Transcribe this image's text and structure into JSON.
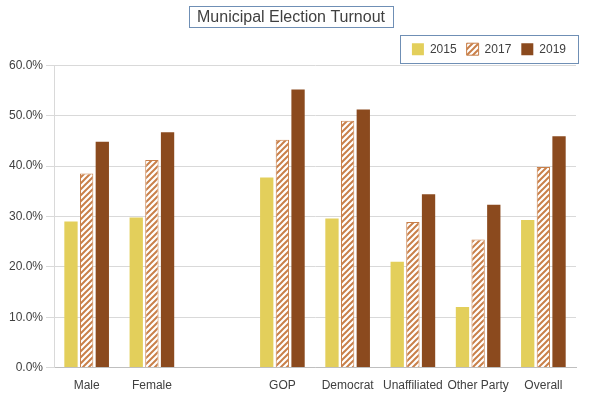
{
  "chart_data": {
    "type": "bar",
    "title": "Municipal Election Turnout",
    "categories": [
      "Male",
      "Female",
      null,
      "GOP",
      "Democrat",
      "Unaffiliated",
      "Other Party",
      "Overall"
    ],
    "series": [
      {
        "name": "2015",
        "color": "#e3cf5b",
        "values": [
          29.0,
          29.8,
          null,
          37.7,
          29.6,
          21.0,
          12.0,
          29.3
        ]
      },
      {
        "name": "2017",
        "color": "#c9804a",
        "line_style": "hatched",
        "values": [
          38.5,
          41.2,
          null,
          45.2,
          49.0,
          28.9,
          25.4,
          39.8
        ]
      },
      {
        "name": "2019",
        "color": "#8b4a1e",
        "values": [
          44.8,
          46.7,
          null,
          55.2,
          51.2,
          34.4,
          32.3,
          45.9
        ]
      }
    ],
    "ylim": [
      0,
      60
    ],
    "yticks": [
      {
        "value": 0,
        "label": "0.0%"
      },
      {
        "value": 10,
        "label": "10.0%"
      },
      {
        "value": 20,
        "label": "20.0%"
      },
      {
        "value": 30,
        "label": "30.0%"
      },
      {
        "value": 40,
        "label": "40.0%"
      },
      {
        "value": 50,
        "label": "50.0%"
      },
      {
        "value": 60,
        "label": "60.0%"
      }
    ],
    "grid": true,
    "legend": "top-right"
  }
}
